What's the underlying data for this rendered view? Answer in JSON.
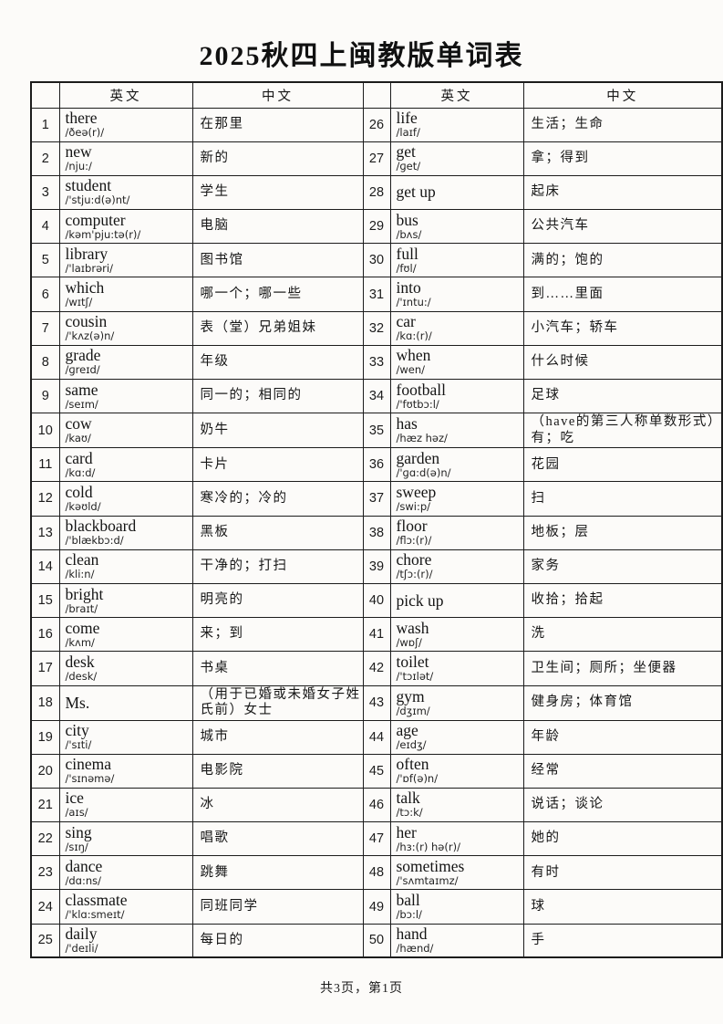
{
  "title": "2025秋四上闽教版单词表",
  "footer": "共3页，第1页",
  "table": {
    "headers": {
      "english": "英文",
      "chinese": "中文"
    },
    "entries": [
      {
        "num": "1",
        "word": "there",
        "phonetic": "/ðeə(r)/",
        "meaning": "在那里"
      },
      {
        "num": "2",
        "word": "new",
        "phonetic": "/nju:/",
        "meaning": "新的"
      },
      {
        "num": "3",
        "word": "student",
        "phonetic": "/'stju:d(ə)nt/",
        "meaning": "学生"
      },
      {
        "num": "4",
        "word": "computer",
        "phonetic": "/kəm'pju:tə(r)/",
        "meaning": "电脑"
      },
      {
        "num": "5",
        "word": "library",
        "phonetic": "/'laɪbrəri/",
        "meaning": "图书馆"
      },
      {
        "num": "6",
        "word": "which",
        "phonetic": "/wɪtʃ/",
        "meaning": "哪一个；哪一些"
      },
      {
        "num": "7",
        "word": "cousin",
        "phonetic": "/'kʌz(ə)n/",
        "meaning": "表（堂）兄弟姐妹"
      },
      {
        "num": "8",
        "word": "grade",
        "phonetic": "/ɡreɪd/",
        "meaning": "年级"
      },
      {
        "num": "9",
        "word": "same",
        "phonetic": "/seɪm/",
        "meaning": "同一的；相同的"
      },
      {
        "num": "10",
        "word": "cow",
        "phonetic": "/kaʊ/",
        "meaning": "奶牛"
      },
      {
        "num": "11",
        "word": "card",
        "phonetic": "/kɑ:d/",
        "meaning": "卡片"
      },
      {
        "num": "12",
        "word": "cold",
        "phonetic": "/kəʊld/",
        "meaning": "寒冷的；冷的"
      },
      {
        "num": "13",
        "word": "blackboard",
        "phonetic": "/'blækbɔ:d/",
        "meaning": "黑板"
      },
      {
        "num": "14",
        "word": "clean",
        "phonetic": "/kli:n/",
        "meaning": "干净的；打扫"
      },
      {
        "num": "15",
        "word": "bright",
        "phonetic": "/braɪt/",
        "meaning": "明亮的"
      },
      {
        "num": "16",
        "word": "come",
        "phonetic": "/kʌm/",
        "meaning": "来；到"
      },
      {
        "num": "17",
        "word": "desk",
        "phonetic": "/desk/",
        "meaning": "书桌"
      },
      {
        "num": "18",
        "word": "Ms.",
        "phonetic": "",
        "meaning": "（用于已婚或未婚女子姓氏前）女士"
      },
      {
        "num": "19",
        "word": "city",
        "phonetic": "/'sɪti/",
        "meaning": "城市"
      },
      {
        "num": "20",
        "word": "cinema",
        "phonetic": "/'sɪnəmə/",
        "meaning": "电影院"
      },
      {
        "num": "21",
        "word": "ice",
        "phonetic": "/aɪs/",
        "meaning": "冰"
      },
      {
        "num": "22",
        "word": "sing",
        "phonetic": "/sɪŋ/",
        "meaning": "唱歌"
      },
      {
        "num": "23",
        "word": "dance",
        "phonetic": "/dɑ:ns/",
        "meaning": "跳舞"
      },
      {
        "num": "24",
        "word": "classmate",
        "phonetic": "/'klɑ:smeɪt/",
        "meaning": "同班同学"
      },
      {
        "num": "25",
        "word": "daily",
        "phonetic": "/'deɪli/",
        "meaning": "每日的"
      },
      {
        "num": "26",
        "word": "life",
        "phonetic": "/laɪf/",
        "meaning": "生活；生命"
      },
      {
        "num": "27",
        "word": "get",
        "phonetic": "/ɡet/",
        "meaning": "拿；得到"
      },
      {
        "num": "28",
        "word": "get up",
        "phonetic": "",
        "meaning": "起床"
      },
      {
        "num": "29",
        "word": "bus",
        "phonetic": "/bʌs/",
        "meaning": "公共汽车"
      },
      {
        "num": "30",
        "word": "full",
        "phonetic": "/fʊl/",
        "meaning": "满的；饱的"
      },
      {
        "num": "31",
        "word": "into",
        "phonetic": "/'ɪntu:/",
        "meaning": "到……里面"
      },
      {
        "num": "32",
        "word": "car",
        "phonetic": "/kɑ:(r)/",
        "meaning": "小汽车；轿车"
      },
      {
        "num": "33",
        "word": "when",
        "phonetic": "/wen/",
        "meaning": "什么时候"
      },
      {
        "num": "34",
        "word": "football",
        "phonetic": "/'fʊtbɔ:l/",
        "meaning": "足球"
      },
      {
        "num": "35",
        "word": "has",
        "phonetic": "/hæz həz/",
        "meaning": "（have的第三人称单数形式）有；吃"
      },
      {
        "num": "36",
        "word": "garden",
        "phonetic": "/'ɡɑ:d(ə)n/",
        "meaning": "花园"
      },
      {
        "num": "37",
        "word": "sweep",
        "phonetic": "/swi:p/",
        "meaning": "扫"
      },
      {
        "num": "38",
        "word": "floor",
        "phonetic": "/flɔ:(r)/",
        "meaning": "地板；层"
      },
      {
        "num": "39",
        "word": "chore",
        "phonetic": "/tʃɔ:(r)/",
        "meaning": "家务"
      },
      {
        "num": "40",
        "word": "pick up",
        "phonetic": "",
        "meaning": "收拾；拾起"
      },
      {
        "num": "41",
        "word": "wash",
        "phonetic": "/wɒʃ/",
        "meaning": "洗"
      },
      {
        "num": "42",
        "word": "toilet",
        "phonetic": "/'tɔɪlət/",
        "meaning": "卫生间；厕所；坐便器"
      },
      {
        "num": "43",
        "word": "gym",
        "phonetic": "/dʒɪm/",
        "meaning": "健身房；体育馆"
      },
      {
        "num": "44",
        "word": "age",
        "phonetic": "/eɪdʒ/",
        "meaning": "年龄"
      },
      {
        "num": "45",
        "word": "often",
        "phonetic": "/'ɒf(ə)n/",
        "meaning": "经常"
      },
      {
        "num": "46",
        "word": "talk",
        "phonetic": "/tɔ:k/",
        "meaning": "说话；谈论"
      },
      {
        "num": "47",
        "word": "her",
        "phonetic": "/hɜ:(r) hə(r)/",
        "meaning": "她的"
      },
      {
        "num": "48",
        "word": "sometimes",
        "phonetic": "/'sʌmtaɪmz/",
        "meaning": "有时"
      },
      {
        "num": "49",
        "word": "ball",
        "phonetic": "/bɔ:l/",
        "meaning": "球"
      },
      {
        "num": "50",
        "word": "hand",
        "phonetic": "/hænd/",
        "meaning": "手"
      }
    ]
  }
}
